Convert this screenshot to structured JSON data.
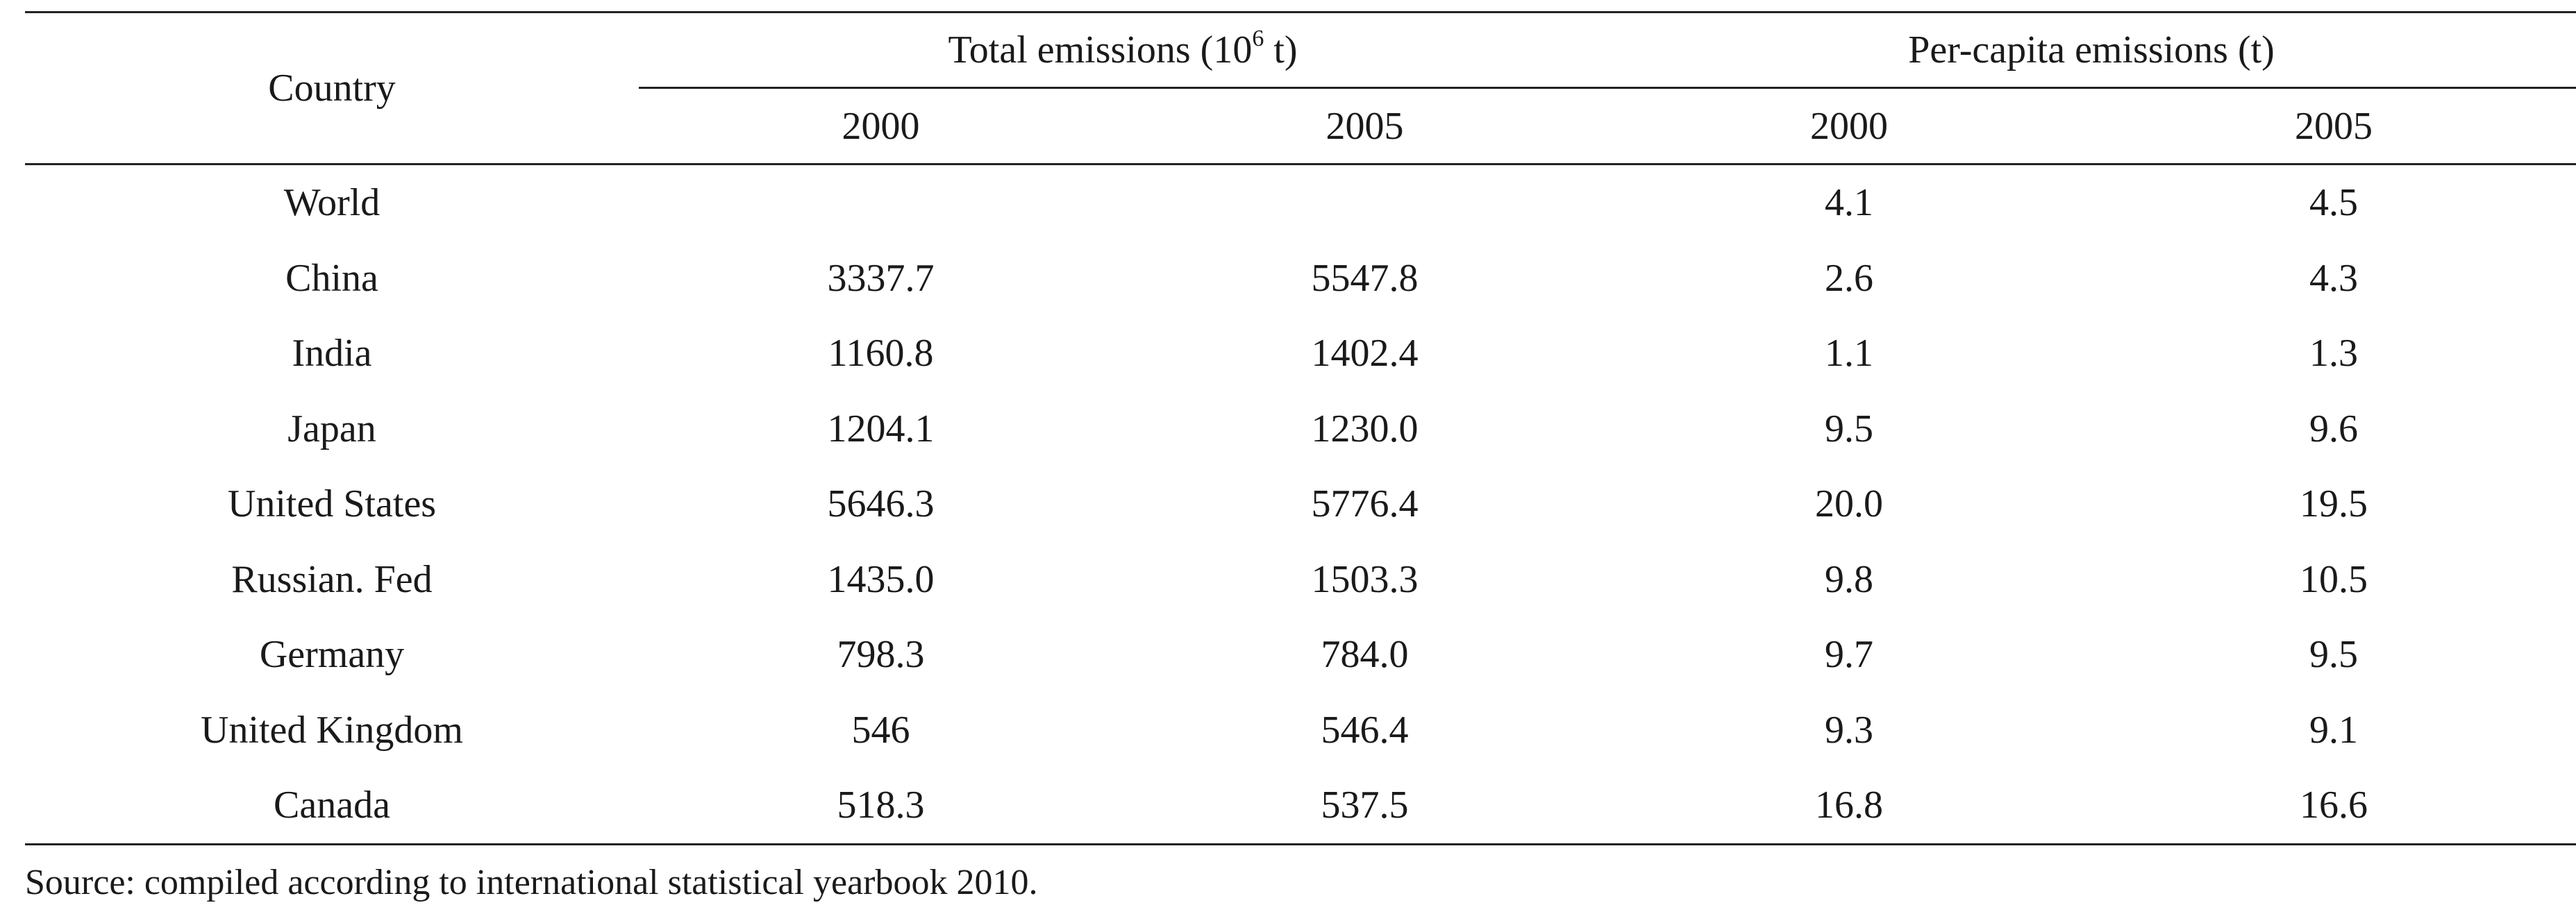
{
  "table": {
    "headers": {
      "country": "Country",
      "total_group": {
        "prefix": "Total emissions (10",
        "superscript": "6",
        "suffix": " t)"
      },
      "per_capita_group": "Per-capita emissions (t)",
      "years": [
        "2000",
        "2005",
        "2000",
        "2005"
      ]
    },
    "rows": [
      {
        "country": "World",
        "total_2000": "",
        "total_2005": "",
        "per_capita_2000": "4.1",
        "per_capita_2005": "4.5"
      },
      {
        "country": "China",
        "total_2000": "3337.7",
        "total_2005": "5547.8",
        "per_capita_2000": "2.6",
        "per_capita_2005": "4.3"
      },
      {
        "country": "India",
        "total_2000": "1160.8",
        "total_2005": "1402.4",
        "per_capita_2000": "1.1",
        "per_capita_2005": "1.3"
      },
      {
        "country": "Japan",
        "total_2000": "1204.1",
        "total_2005": "1230.0",
        "per_capita_2000": "9.5",
        "per_capita_2005": "9.6"
      },
      {
        "country": "United States",
        "total_2000": "5646.3",
        "total_2005": "5776.4",
        "per_capita_2000": "20.0",
        "per_capita_2005": "19.5"
      },
      {
        "country": "Russian. Fed",
        "total_2000": "1435.0",
        "total_2005": "1503.3",
        "per_capita_2000": "9.8",
        "per_capita_2005": "10.5"
      },
      {
        "country": "Germany",
        "total_2000": "798.3",
        "total_2005": "784.0",
        "per_capita_2000": "9.7",
        "per_capita_2005": "9.5"
      },
      {
        "country": "United Kingdom",
        "total_2000": "546",
        "total_2005": "546.4",
        "per_capita_2000": "9.3",
        "per_capita_2005": "9.1"
      },
      {
        "country": "Canada",
        "total_2000": "518.3",
        "total_2005": "537.5",
        "per_capita_2000": "16.8",
        "per_capita_2005": "16.6"
      }
    ]
  },
  "source_note": "Source: compiled according to international statistical yearbook 2010."
}
